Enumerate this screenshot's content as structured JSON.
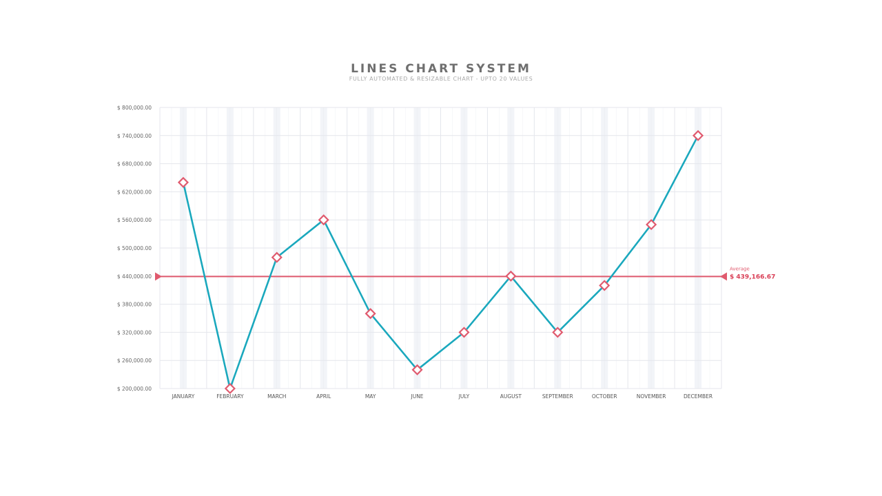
{
  "chart_data": {
    "type": "line",
    "title": "LINES CHART SYSTEM",
    "subtitle": "FULLY AUTOMATED & RESIZABLE CHART - UPTO 20 VALUES",
    "categories": [
      "JANUARY",
      "FEBRUARY",
      "MARCH",
      "APRIL",
      "MAY",
      "JUNE",
      "JULY",
      "AUGUST",
      "SEPTEMBER",
      "OCTOBER",
      "NOVEMBER",
      "DECEMBER"
    ],
    "values": [
      640000,
      200000,
      480000,
      560000,
      360000,
      240000,
      320000,
      440000,
      320000,
      420000,
      550000,
      740000
    ],
    "ylim": [
      200000,
      800000
    ],
    "y_ticks": [
      200000,
      260000,
      320000,
      380000,
      440000,
      500000,
      560000,
      620000,
      680000,
      740000,
      800000
    ],
    "y_tick_labels": [
      "$ 200,000.00",
      "$ 260,000.00",
      "$ 320,000.00",
      "$ 380,000.00",
      "$ 440,000.00",
      "$ 500,000.00",
      "$ 560,000.00",
      "$ 620,000.00",
      "$ 680,000.00",
      "$ 740,000.00",
      "$ 800,000.00"
    ],
    "average": {
      "label": "Average",
      "value": 439166.67,
      "display": "$ 439,166.67"
    },
    "grid": true,
    "colors": {
      "line": "#1aa8bd",
      "marker": "#e05a6e",
      "average": "#e05a6e",
      "grid": "#e4e6ec",
      "column_shade": "#f2f4f8"
    }
  }
}
